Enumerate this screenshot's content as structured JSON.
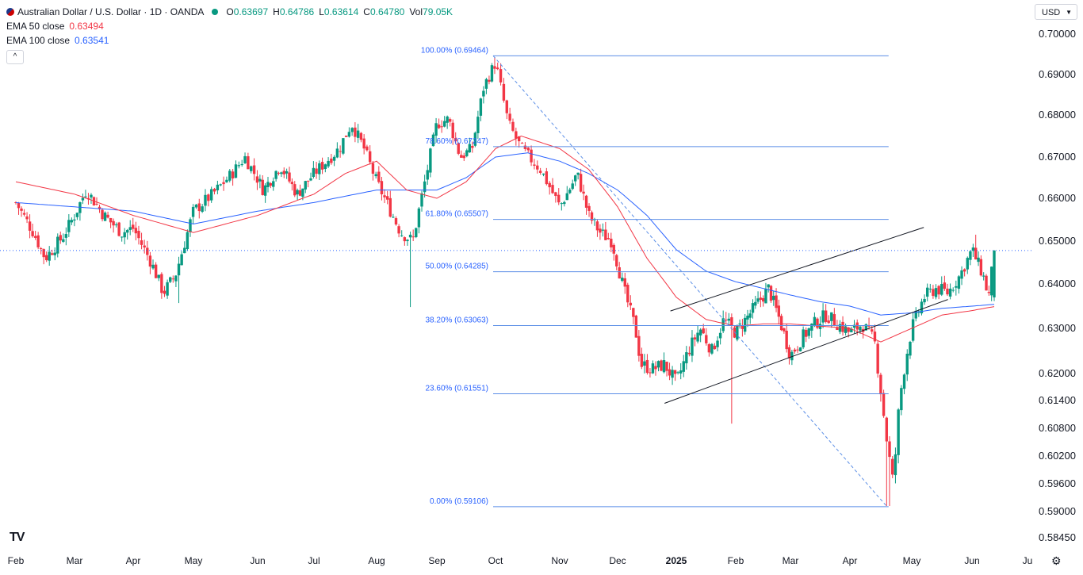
{
  "header": {
    "symbol_title": "Australian Dollar / U.S. Dollar · 1D · OANDA",
    "ohlc": [
      {
        "label": "O",
        "value": "0.63697"
      },
      {
        "label": "H",
        "value": "0.64786"
      },
      {
        "label": "L",
        "value": "0.63614"
      },
      {
        "label": "C",
        "value": "0.64780"
      },
      {
        "label": "Vol",
        "value": "79.05K"
      }
    ],
    "ema50_label": "EMA 50 close",
    "ema50_value": "0.63494",
    "ema100_label": "EMA 100 close",
    "ema100_value": "0.63541",
    "collapse_icon": "^",
    "currency": "USD",
    "currency_icon": "chevron-down-icon",
    "logo_text": "TV",
    "settings_icon": "gear-icon"
  },
  "colors": {
    "up": "#089981",
    "down": "#f23645",
    "ema50": "#f23645",
    "ema100": "#2962ff",
    "fib": "#5b8ee6",
    "fib_text": "#2962ff",
    "channel": "#131722",
    "last_price": "#2962ff"
  },
  "chart_data": {
    "type": "candlestick",
    "title": "Australian Dollar / U.S. Dollar · 1D · OANDA",
    "y_ticks": [
      "0.70000",
      "0.69000",
      "0.68000",
      "0.67000",
      "0.66000",
      "0.65000",
      "0.64000",
      "0.63000",
      "0.62000",
      "0.61400",
      "0.60800",
      "0.60200",
      "0.59600",
      "0.59000",
      "0.58450"
    ],
    "x_ticks": [
      "Feb",
      "Mar",
      "Apr",
      "May",
      "Jun",
      "Jul",
      "Aug",
      "Sep",
      "Oct",
      "Nov",
      "Dec",
      "2025",
      "Feb",
      "Mar",
      "Apr",
      "May",
      "Jun",
      "Ju"
    ],
    "bold_x_tick": "2025",
    "last_price": 0.6478,
    "fib_levels": [
      {
        "label": "100.00% (0.69464)",
        "value": 0.69464
      },
      {
        "label": "78.60% (0.67247)",
        "value": 0.67247
      },
      {
        "label": "61.80% (0.65507)",
        "value": 0.65507
      },
      {
        "label": "50.00% (0.64285)",
        "value": 0.64285
      },
      {
        "label": "38.20% (0.63063)",
        "value": 0.63063
      },
      {
        "label": "23.60% (0.61551)",
        "value": 0.61551
      },
      {
        "label": "0.00% (0.59106)",
        "value": 0.59106
      }
    ],
    "fib_range": {
      "start_month_index": 8.0,
      "end_month_index": 14.6
    },
    "fib_trend": {
      "from": {
        "t": 8.0,
        "price": 0.69464
      },
      "to": {
        "t": 14.6,
        "price": 0.59106
      }
    },
    "channel_upper": {
      "from": {
        "t": 10.9,
        "price": 0.6339
      },
      "to": {
        "t": 15.2,
        "price": 0.6532
      }
    },
    "channel_lower": {
      "from": {
        "t": 10.8,
        "price": 0.6134
      },
      "to": {
        "t": 15.6,
        "price": 0.6365
      }
    },
    "price_anchors": [
      [
        0.0,
        0.659
      ],
      [
        0.3,
        0.652
      ],
      [
        0.5,
        0.646
      ],
      [
        0.8,
        0.651
      ],
      [
        1.0,
        0.656
      ],
      [
        1.2,
        0.662
      ],
      [
        1.5,
        0.656
      ],
      [
        1.8,
        0.652
      ],
      [
        2.0,
        0.653
      ],
      [
        2.3,
        0.645
      ],
      [
        2.5,
        0.638
      ],
      [
        2.7,
        0.642
      ],
      [
        2.9,
        0.652
      ],
      [
        3.0,
        0.657
      ],
      [
        3.3,
        0.661
      ],
      [
        3.6,
        0.666
      ],
      [
        3.8,
        0.67
      ],
      [
        4.1,
        0.662
      ],
      [
        4.4,
        0.668
      ],
      [
        4.7,
        0.661
      ],
      [
        5.0,
        0.666
      ],
      [
        5.4,
        0.672
      ],
      [
        5.6,
        0.678
      ],
      [
        5.8,
        0.672
      ],
      [
        6.0,
        0.664
      ],
      [
        6.2,
        0.658
      ],
      [
        6.4,
        0.652
      ],
      [
        6.6,
        0.65
      ],
      [
        6.8,
        0.664
      ],
      [
        7.0,
        0.678
      ],
      [
        7.2,
        0.679
      ],
      [
        7.4,
        0.67
      ],
      [
        7.6,
        0.672
      ],
      [
        7.8,
        0.687
      ],
      [
        8.0,
        0.693
      ],
      [
        8.2,
        0.678
      ],
      [
        8.4,
        0.672
      ],
      [
        8.7,
        0.667
      ],
      [
        9.0,
        0.658
      ],
      [
        9.2,
        0.663
      ],
      [
        9.3,
        0.666
      ],
      [
        9.5,
        0.656
      ],
      [
        9.7,
        0.652
      ],
      [
        9.9,
        0.65
      ],
      [
        10.1,
        0.639
      ],
      [
        10.3,
        0.63
      ],
      [
        10.4,
        0.622
      ],
      [
        10.6,
        0.621
      ],
      [
        10.8,
        0.622
      ],
      [
        11.0,
        0.618
      ],
      [
        11.2,
        0.625
      ],
      [
        11.4,
        0.63
      ],
      [
        11.6,
        0.625
      ],
      [
        11.8,
        0.632
      ],
      [
        12.0,
        0.629
      ],
      [
        12.3,
        0.634
      ],
      [
        12.6,
        0.639
      ],
      [
        12.8,
        0.632
      ],
      [
        13.0,
        0.624
      ],
      [
        13.2,
        0.628
      ],
      [
        13.4,
        0.631
      ],
      [
        13.6,
        0.633
      ],
      [
        13.8,
        0.631
      ],
      [
        14.0,
        0.629
      ],
      [
        14.2,
        0.631
      ],
      [
        14.4,
        0.627
      ],
      [
        14.6,
        0.605
      ],
      [
        14.7,
        0.596
      ],
      [
        14.8,
        0.614
      ],
      [
        14.9,
        0.623
      ],
      [
        15.0,
        0.63
      ],
      [
        15.2,
        0.637
      ],
      [
        15.4,
        0.639
      ],
      [
        15.6,
        0.638
      ],
      [
        15.8,
        0.642
      ],
      [
        16.0,
        0.648
      ],
      [
        16.2,
        0.642
      ],
      [
        16.3,
        0.637
      ],
      [
        16.4,
        0.6478
      ]
    ],
    "special_wicks": [
      {
        "t": 2.75,
        "low": 0.6357
      },
      {
        "t": 6.55,
        "low": 0.6348
      },
      {
        "t": 8.0,
        "high": 0.6943
      },
      {
        "t": 11.95,
        "low": 0.609
      },
      {
        "t": 14.6,
        "low": 0.5912
      },
      {
        "t": 14.65,
        "low": 0.5912
      },
      {
        "t": 16.05,
        "high": 0.6515
      }
    ],
    "ema50_anchors": [
      [
        0.0,
        0.664
      ],
      [
        1.0,
        0.661
      ],
      [
        2.0,
        0.656
      ],
      [
        3.0,
        0.652
      ],
      [
        4.0,
        0.656
      ],
      [
        5.0,
        0.661
      ],
      [
        5.5,
        0.666
      ],
      [
        6.0,
        0.669
      ],
      [
        6.5,
        0.662
      ],
      [
        7.0,
        0.66
      ],
      [
        7.5,
        0.664
      ],
      [
        8.0,
        0.672
      ],
      [
        8.4,
        0.675
      ],
      [
        9.0,
        0.672
      ],
      [
        9.5,
        0.667
      ],
      [
        10.0,
        0.658
      ],
      [
        10.5,
        0.646
      ],
      [
        11.0,
        0.637
      ],
      [
        11.5,
        0.632
      ],
      [
        12.0,
        0.6305
      ],
      [
        12.5,
        0.631
      ],
      [
        13.0,
        0.631
      ],
      [
        13.5,
        0.6305
      ],
      [
        14.0,
        0.63
      ],
      [
        14.5,
        0.627
      ],
      [
        15.0,
        0.63
      ],
      [
        15.5,
        0.633
      ],
      [
        16.0,
        0.634
      ],
      [
        16.4,
        0.6349
      ]
    ],
    "ema100_anchors": [
      [
        0.0,
        0.659
      ],
      [
        1.0,
        0.658
      ],
      [
        2.0,
        0.657
      ],
      [
        3.0,
        0.654
      ],
      [
        4.0,
        0.657
      ],
      [
        5.0,
        0.659
      ],
      [
        6.0,
        0.662
      ],
      [
        6.5,
        0.662
      ],
      [
        7.0,
        0.662
      ],
      [
        7.5,
        0.665
      ],
      [
        8.0,
        0.67
      ],
      [
        8.5,
        0.671
      ],
      [
        9.0,
        0.669
      ],
      [
        9.5,
        0.666
      ],
      [
        10.0,
        0.662
      ],
      [
        10.5,
        0.656
      ],
      [
        11.0,
        0.648
      ],
      [
        11.5,
        0.643
      ],
      [
        12.0,
        0.6405
      ],
      [
        12.5,
        0.639
      ],
      [
        13.0,
        0.6375
      ],
      [
        13.5,
        0.636
      ],
      [
        14.0,
        0.635
      ],
      [
        14.5,
        0.633
      ],
      [
        15.0,
        0.6335
      ],
      [
        15.5,
        0.6345
      ],
      [
        16.0,
        0.635
      ],
      [
        16.4,
        0.6354
      ]
    ]
  }
}
